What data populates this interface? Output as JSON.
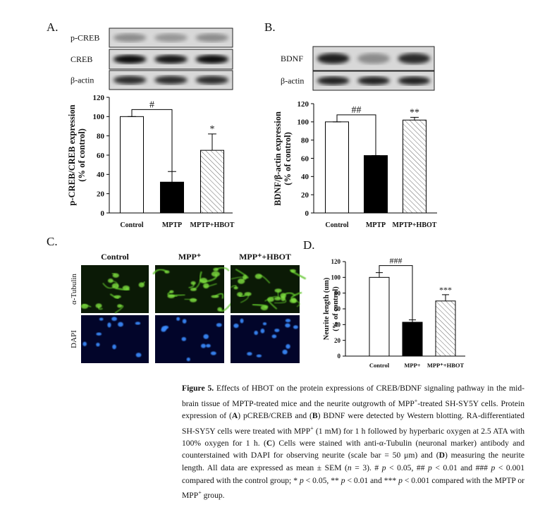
{
  "panels": {
    "a": "A.",
    "b": "B.",
    "c": "C.",
    "d": "D."
  },
  "blots": {
    "a": [
      "p-CREB",
      "CREB",
      "β-actin"
    ],
    "b": [
      "BDNF",
      "β-actin"
    ]
  },
  "micrographs": {
    "columns": [
      "Control",
      "MPP⁺",
      "MPP⁺+HBOT"
    ],
    "rows": [
      "α-Tubulin",
      "DAPI"
    ]
  },
  "chart_data": [
    {
      "type": "bar",
      "y_label": [
        "p-CREB/CREB expression",
        "(% of control)"
      ],
      "categories": [
        "Control",
        "MPTP",
        "MPTP+HBOT"
      ],
      "values": [
        100,
        32,
        65
      ],
      "errors": [
        0,
        11,
        17
      ],
      "fills": [
        "white",
        "black",
        "hatch"
      ],
      "ylim": [
        0,
        120
      ],
      "yticks": [
        0,
        20,
        40,
        60,
        80,
        100,
        120
      ],
      "annotations": [
        {
          "label": "#",
          "from": 0,
          "to": 1
        },
        {
          "label": "*",
          "over": 2
        }
      ]
    },
    {
      "type": "bar",
      "y_label": [
        "BDNF/β-actin expression",
        "(% of control)"
      ],
      "categories": [
        "Control",
        "MPTP",
        "MPTP+HBOT"
      ],
      "values": [
        100,
        63,
        102
      ],
      "errors": [
        0,
        0,
        3
      ],
      "fills": [
        "white",
        "black",
        "hatch"
      ],
      "ylim": [
        0,
        120
      ],
      "yticks": [
        0,
        20,
        40,
        60,
        80,
        100,
        120
      ],
      "annotations": [
        {
          "label": "##",
          "from": 0,
          "to": 1
        },
        {
          "label": "**",
          "over": 2
        }
      ]
    },
    {
      "type": "bar",
      "y_label": [
        "Neurite length (um)",
        "(% of control)"
      ],
      "categories": [
        "Control",
        "MPP+",
        "MPP⁺+HBOT"
      ],
      "values": [
        100,
        43,
        70
      ],
      "errors": [
        6,
        3,
        8
      ],
      "fills": [
        "white",
        "black",
        "hatch"
      ],
      "ylim": [
        0,
        120
      ],
      "yticks": [
        0,
        20,
        40,
        60,
        80,
        100,
        120
      ],
      "annotations": [
        {
          "label": "###",
          "from": 0,
          "to": 1
        },
        {
          "label": "***",
          "over": 2
        }
      ]
    }
  ],
  "caption": [
    {
      "text": "Figure 5.",
      "style": "bold"
    },
    " Effects of HBOT on the protein expressions of CREB/BDNF signaling pathway in the mid-brain tissue of MPTP-treated mice and the neurite outgrowth of MPP",
    {
      "text": "+",
      "style": "sup"
    },
    "-treated SH-SY5Y cells. Protein expression of (",
    {
      "text": "A",
      "style": "bold"
    },
    ") pCREB/CREB and (",
    {
      "text": "B",
      "style": "bold"
    },
    ") BDNF were detected by Western blotting. RA-differentiated SH-SY5Y cells were treated with MPP",
    {
      "text": "+",
      "style": "sup"
    },
    " (1 mM) for 1 h followed by hyperbaric oxygen at 2.5 ATA with 100% oxygen for 1 h. (",
    {
      "text": "C",
      "style": "bold"
    },
    ") Cells were stained with anti-α-Tubulin (neuronal marker) antibody and counterstained with DAPI for observing neurite (scale bar = 50 μm) and (",
    {
      "text": "D",
      "style": "bold"
    },
    ") measuring the neurite length. All data are expressed as mean ± SEM (",
    {
      "text": "n",
      "style": "italic"
    },
    " = 3). # ",
    {
      "text": "p",
      "style": "italic"
    },
    " < 0.05, ## ",
    {
      "text": "p",
      "style": "italic"
    },
    " < 0.01 and ### ",
    {
      "text": "p",
      "style": "italic"
    },
    " < 0.001 compared with the control group; * ",
    {
      "text": "p",
      "style": "italic"
    },
    " < 0.05, ** ",
    {
      "text": "p",
      "style": "italic"
    },
    " < 0.01 and *** ",
    {
      "text": "p",
      "style": "italic"
    },
    " < 0.001 compared with the MPTP or MPP",
    {
      "text": "+",
      "style": "sup"
    },
    " group."
  ]
}
